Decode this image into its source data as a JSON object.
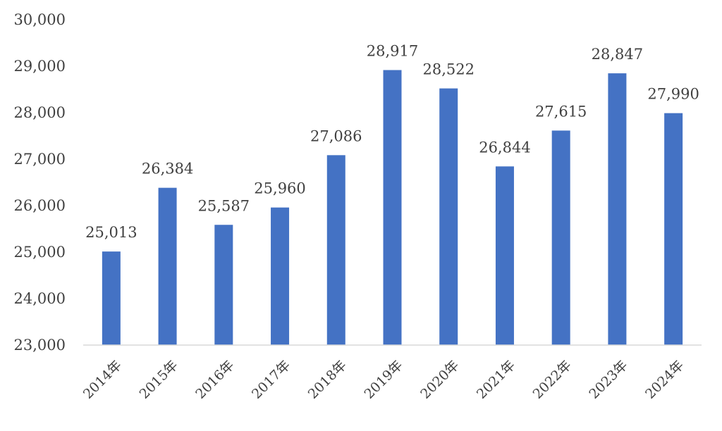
{
  "chart_data": {
    "type": "bar",
    "title": "",
    "xlabel": "",
    "ylabel": "",
    "categories": [
      "2014年",
      "2015年",
      "2016年",
      "2017年",
      "2018年",
      "2019年",
      "2020年",
      "2021年",
      "2022年",
      "2023年",
      "2024年"
    ],
    "values": [
      25013,
      26384,
      25587,
      25960,
      27086,
      28917,
      28522,
      26844,
      27615,
      28847,
      27990
    ],
    "value_labels": [
      "25,013",
      "26,384",
      "25,587",
      "25,960",
      "27,086",
      "28,917",
      "28,522",
      "26,844",
      "27,615",
      "28,847",
      "27,990"
    ],
    "ylim": [
      23000,
      30000
    ],
    "y_ticks": [
      23000,
      24000,
      25000,
      26000,
      27000,
      28000,
      29000,
      30000
    ],
    "y_tick_labels": [
      "23,000",
      "24,000",
      "25,000",
      "26,000",
      "27,000",
      "28,000",
      "29,000",
      "30,000"
    ],
    "grid": false,
    "legend": "none",
    "bar_color": "#4472C4",
    "axis_color": "#d9d9d9",
    "text_color": "#404040"
  }
}
